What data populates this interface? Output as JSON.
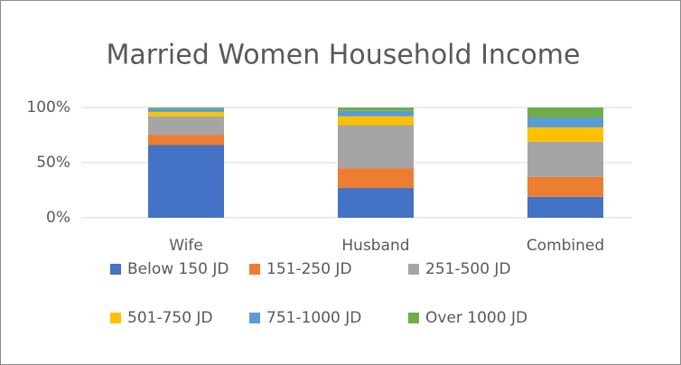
{
  "chart_data": {
    "type": "stacked_bar",
    "title": "Married Women Household Income",
    "categories": [
      "Wife",
      "Husband",
      "Combined"
    ],
    "series": [
      {
        "name": "Below 150 JD",
        "color": "#4472c4",
        "values": [
          66,
          27,
          19
        ]
      },
      {
        "name": "151-250 JD",
        "color": "#ed7d31",
        "values": [
          9,
          18,
          18
        ]
      },
      {
        "name": "251-500 JD",
        "color": "#a5a5a5",
        "values": [
          17,
          39,
          32
        ]
      },
      {
        "name": "501-750 JD",
        "color": "#ffc000",
        "values": [
          4,
          8,
          13
        ]
      },
      {
        "name": "751-1000 JD",
        "color": "#5b9bd5",
        "values": [
          3,
          5,
          9
        ]
      },
      {
        "name": "Over 1000 JD",
        "color": "#70ad47",
        "values": [
          1,
          3,
          9
        ]
      }
    ],
    "ylim": [
      0,
      100
    ],
    "yticks": [
      {
        "value": 0,
        "label": "0%"
      },
      {
        "value": 50,
        "label": "50%"
      },
      {
        "value": 100,
        "label": "100%"
      }
    ],
    "grid": true,
    "legend": "bottom"
  }
}
